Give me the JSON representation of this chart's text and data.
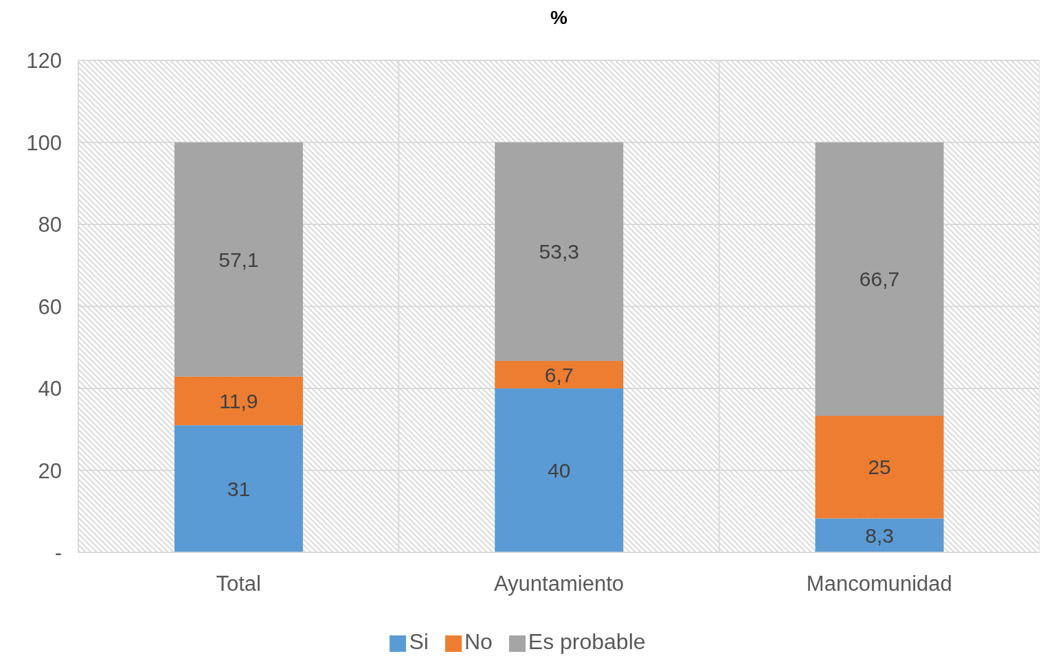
{
  "chart_data": {
    "type": "bar",
    "title": "%",
    "categories": [
      "Total",
      "Ayuntamiento",
      "Mancomunidad"
    ],
    "stacked": true,
    "series": [
      {
        "name": "Si",
        "color": "#5b9bd5",
        "values": [
          31,
          40,
          8.3
        ],
        "value_labels": [
          "31",
          "40",
          "8,3"
        ]
      },
      {
        "name": "No",
        "color": "#ed7d31",
        "values": [
          11.9,
          6.7,
          25
        ],
        "value_labels": [
          "11,9",
          "6,7",
          "25"
        ]
      },
      {
        "name": "Es probable",
        "color": "#a5a5a5",
        "values": [
          57.1,
          53.3,
          66.7
        ],
        "value_labels": [
          "57,1",
          "53,3",
          "66,7"
        ]
      }
    ],
    "ylim": [
      0,
      120
    ],
    "yticks": [
      {
        "value": 0,
        "label": "-"
      },
      20,
      40,
      60,
      80,
      100,
      120
    ],
    "grid": true,
    "legend": "bottom"
  }
}
